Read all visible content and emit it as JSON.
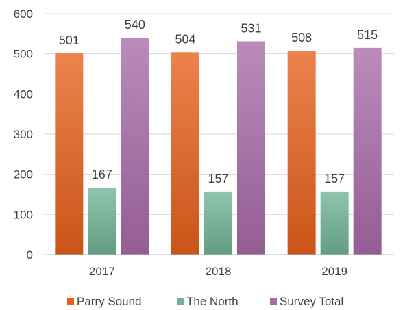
{
  "chart_data": {
    "type": "bar",
    "categories": [
      "2017",
      "2018",
      "2019"
    ],
    "series": [
      {
        "name": "Parry Sound",
        "values": [
          501,
          504,
          508
        ],
        "color": "#e5601b"
      },
      {
        "name": "The North",
        "values": [
          167,
          157,
          157
        ],
        "color": "#6fb394"
      },
      {
        "name": "Survey Total",
        "values": [
          540,
          531,
          515
        ],
        "color": "#a86aa8"
      }
    ],
    "ylim": [
      0,
      600
    ],
    "yticks": [
      0,
      100,
      200,
      300,
      400,
      500,
      600
    ],
    "grid": true,
    "legend_position": "bottom",
    "data_labels": true
  }
}
